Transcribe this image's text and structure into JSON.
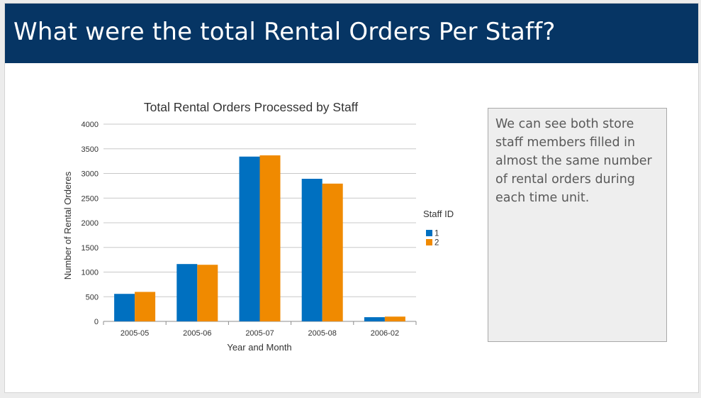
{
  "header": {
    "title": "What were the total Rental Orders Per Staff?"
  },
  "note": {
    "text": "We can see both store staff members filled in almost the same number of rental orders during each time unit."
  },
  "colors": {
    "header_bg": "#063564",
    "series_1": "#0070c0",
    "series_2": "#f08a00"
  },
  "chart_data": {
    "type": "bar",
    "title": "Total Rental Orders Processed by Staff",
    "xlabel": "Year and Month",
    "ylabel": "Number of Rental Orderes",
    "categories": [
      "2005-05",
      "2005-06",
      "2005-07",
      "2005-08",
      "2006-02"
    ],
    "series": [
      {
        "name": "1",
        "values": [
          558,
          1163,
          3342,
          2892,
          85
        ]
      },
      {
        "name": "2",
        "values": [
          598,
          1148,
          3367,
          2794,
          97
        ]
      }
    ],
    "ylim": [
      0,
      4000
    ],
    "yticks": [
      0,
      500,
      1000,
      1500,
      2000,
      2500,
      3000,
      3500,
      4000
    ],
    "grid": true,
    "legend_title": "Staff ID",
    "legend_position": "right"
  }
}
